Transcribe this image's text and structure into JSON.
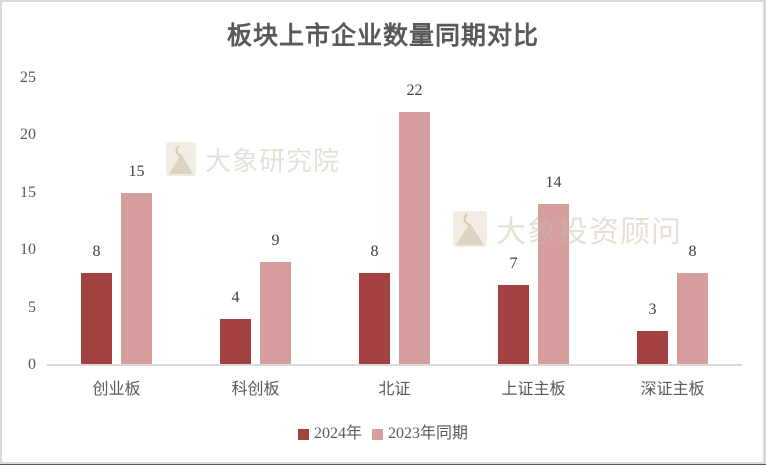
{
  "chart_data": {
    "type": "bar",
    "title": "板块上市企业数量同期对比",
    "xlabel": "",
    "ylabel": "",
    "categories": [
      "创业板",
      "科创板",
      "北证",
      "上证主板",
      "深证主板"
    ],
    "series": [
      {
        "name": "2024年",
        "color": "#A34040",
        "values": [
          8,
          4,
          8,
          7,
          3
        ]
      },
      {
        "name": "2023年同期",
        "color": "#D69D9E",
        "values": [
          15,
          9,
          22,
          14,
          8
        ]
      }
    ],
    "ylim": [
      0,
      25
    ],
    "yticks": [
      "0",
      "5",
      "10",
      "15",
      "20",
      "25"
    ],
    "grid": false,
    "legend_position": "bottom",
    "data_labels": true
  },
  "watermarks": {
    "first": "大象研究院",
    "second": "大象投资顾问"
  },
  "colors": {
    "axis": "#D9D9D9",
    "text": "#595959"
  }
}
